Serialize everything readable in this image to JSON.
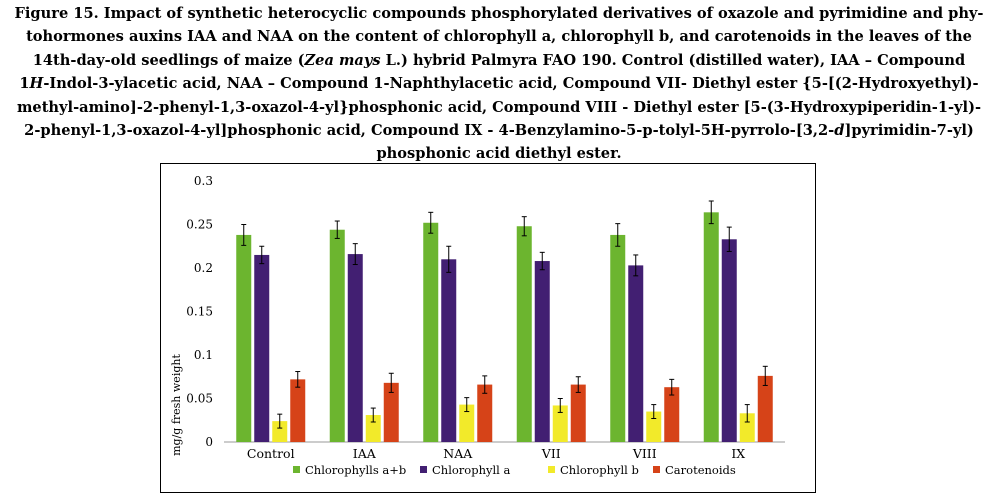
{
  "caption": {
    "line1": "Figure 15. Impact of synthetic heterocyclic compounds phosphorylated derivatives of oxazole and pyrimidine and phy-",
    "line2": "tohormones auxins IAA and NAA on the content of chlorophyll a, chlorophyll b, and carotenoids in the leaves of the",
    "line3a": "14th-day-old seedlings of maize (",
    "line3b": "Zea mays",
    "line3c": " L.) hybrid Palmyra FAO 190. Control (distilled water), IAA – Compound",
    "line4a": "1",
    "line4b": "H",
    "line4c": "-Indol-3-ylacetic acid, NAA – Compound 1-Naphthylacetic acid, Compound VII- Diethyl ester {5-[(2-Hydroxyethyl)-",
    "line5": "methyl-amino]-2-phenyl-1,3-oxazol-4-yl}phosphonic acid, Compound VIII - Diethyl ester [5-(3-Hydroxypiperidin-1-yl)-",
    "line6a": "2-phenyl-1,3-oxazol-4-yl]phosphonic acid, Compound IX - 4-Benzylamino-5-p-tolyl-5H-pyrrolo-[3,2-",
    "line6b": "d",
    "line6c": "]pyrimidin-7-yl)",
    "line7": "phosphonic acid diethyl ester."
  },
  "chart_data": {
    "type": "bar",
    "ylabel": "mg/g fresh weight",
    "ylim": [
      0,
      0.3
    ],
    "yticks": [
      "0",
      "0.05",
      "0.1",
      "0.15",
      "0.2",
      "0.25",
      "0.3"
    ],
    "yticks_values": [
      0,
      0.05,
      0.1,
      0.15,
      0.2,
      0.25,
      0.3
    ],
    "grid": false,
    "legend_position": "bottom",
    "categories": [
      "Control",
      "IAA",
      "NAA",
      "VII",
      "VIII",
      "IX"
    ],
    "series": [
      {
        "name": "Chlorophylls a+b",
        "color": "#6cb52f",
        "values": [
          0.238,
          0.244,
          0.252,
          0.248,
          0.238,
          0.264
        ],
        "errors": [
          0.012,
          0.01,
          0.012,
          0.011,
          0.013,
          0.013
        ]
      },
      {
        "name": "Chlorophyll a",
        "color": "#421f72",
        "values": [
          0.215,
          0.216,
          0.21,
          0.208,
          0.203,
          0.233
        ],
        "errors": [
          0.01,
          0.012,
          0.015,
          0.01,
          0.012,
          0.014
        ]
      },
      {
        "name": "Chlorophyll b",
        "color": "#f2ea2a",
        "values": [
          0.024,
          0.031,
          0.043,
          0.042,
          0.035,
          0.033
        ],
        "errors": [
          0.008,
          0.008,
          0.008,
          0.008,
          0.008,
          0.01
        ]
      },
      {
        "name": "Carotenoids",
        "color": "#d64318",
        "values": [
          0.072,
          0.068,
          0.066,
          0.066,
          0.063,
          0.076
        ],
        "errors": [
          0.009,
          0.011,
          0.01,
          0.009,
          0.009,
          0.011
        ]
      }
    ]
  }
}
